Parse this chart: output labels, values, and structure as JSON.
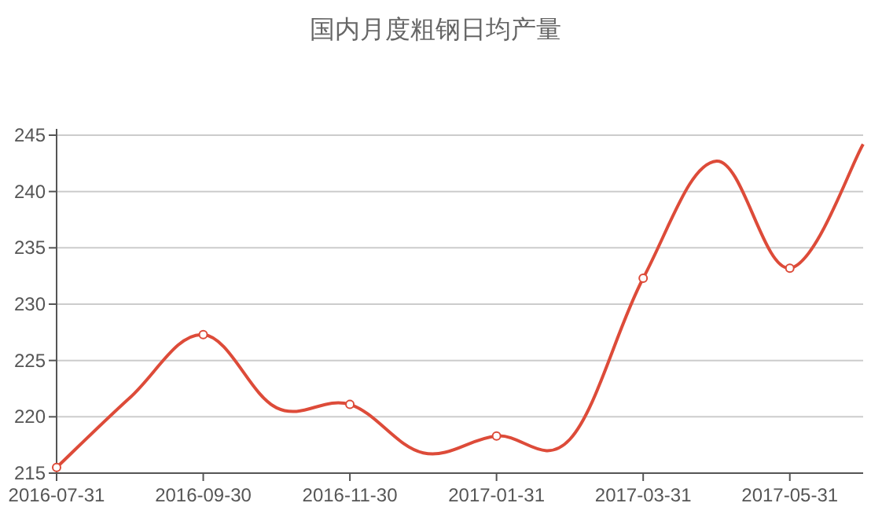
{
  "chart_data": {
    "type": "line",
    "title": "国内月度粗钢日均产量",
    "categories": [
      "2016-07-31",
      null,
      "2016-09-30",
      null,
      "2016-11-30",
      null,
      "2017-01-31",
      null,
      "2017-03-31",
      null,
      "2017-05-31",
      null
    ],
    "series": [
      {
        "color": "#dd4b39",
        "values": [
          215.5,
          221.7,
          227.3,
          220.8,
          221.1,
          216.8,
          218.3,
          218.0,
          232.3,
          242.7,
          233.2,
          244.2
        ]
      }
    ],
    "ylim": [
      215,
      245
    ],
    "yticks": [
      215,
      220,
      225,
      230,
      235,
      240,
      245
    ],
    "grid": "y",
    "marker": "circle"
  }
}
